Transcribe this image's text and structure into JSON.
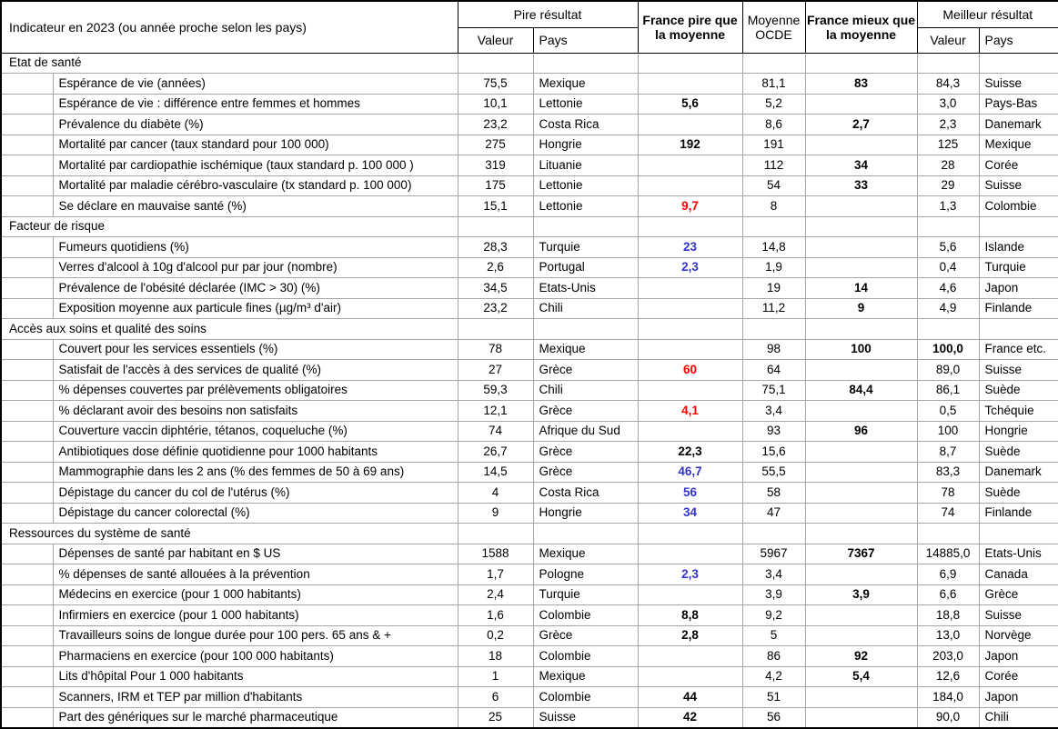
{
  "header": {
    "indicator_label": "Indicateur en 2023 (ou année proche selon les pays)",
    "worst_group": "Pire résultat",
    "worst_value_label": "Valeur",
    "worst_country_label": "Pays",
    "france_worse": "France pire que la moyenne",
    "oecd_average": "Moyenne OCDE",
    "france_better": "France mieux que la moyenne",
    "best_group": "Meilleur résultat",
    "best_value_label": "Valeur",
    "best_country_label": "Pays"
  },
  "colors": {
    "worse_than_average_red": "#ff0000",
    "worse_than_average_blue": "#3333cc",
    "gridline_gray": "#a6a6a6",
    "border_black": "#000000"
  },
  "rows": [
    {
      "type": "section",
      "label": "Etat de santé"
    },
    {
      "type": "data",
      "label": "Espérance de vie (années)",
      "worst_value": "75,5",
      "worst_country": "Mexique",
      "france_worse": "",
      "oecd": "81,1",
      "france_better": "83",
      "best_value": "84,3",
      "best_country": "Suisse"
    },
    {
      "type": "data",
      "label": "Espérance de vie : différence entre femmes et hommes",
      "worst_value": "10,1",
      "worst_country": "Lettonie",
      "france_worse": "5,6",
      "france_worse_color": "black",
      "oecd": "5,2",
      "france_better": "",
      "best_value": "3,0",
      "best_country": "Pays-Bas"
    },
    {
      "type": "data",
      "label": "Prévalence du diabète (%)",
      "worst_value": "23,2",
      "worst_country": "Costa Rica",
      "france_worse": "",
      "oecd": "8,6",
      "france_better": "2,7",
      "best_value": "2,3",
      "best_country": "Danemark"
    },
    {
      "type": "data",
      "label": "Mortalité par cancer (taux standard pour 100 000)",
      "worst_value": "275",
      "worst_country": "Hongrie",
      "france_worse": "192",
      "france_worse_color": "black",
      "oecd": "191",
      "france_better": "",
      "best_value": "125",
      "best_country": "Mexique"
    },
    {
      "type": "data",
      "label": "Mortalité par cardiopathie ischémique (taux standard p. 100 000 )",
      "worst_value": "319",
      "worst_country": "Lituanie",
      "france_worse": "",
      "oecd": "112",
      "france_better": "34",
      "best_value": "28",
      "best_country": "Corée"
    },
    {
      "type": "data",
      "label": "Mortalité par maladie cérébro-vasculaire (tx standard p. 100 000)",
      "worst_value": "175",
      "worst_country": "Lettonie",
      "france_worse": "",
      "oecd": "54",
      "france_better": "33",
      "best_value": "29",
      "best_country": "Suisse"
    },
    {
      "type": "data",
      "label": "Se déclare en mauvaise santé (%)",
      "worst_value": "15,1",
      "worst_country": "Lettonie",
      "france_worse": "9,7",
      "france_worse_color": "red",
      "oecd": "8",
      "france_better": "",
      "best_value": "1,3",
      "best_country": "Colombie"
    },
    {
      "type": "section",
      "label": "Facteur de risque"
    },
    {
      "type": "data",
      "label": "Fumeurs quotidiens (%)",
      "worst_value": "28,3",
      "worst_country": "Turquie",
      "france_worse": "23",
      "france_worse_color": "blue",
      "oecd": "14,8",
      "france_better": "",
      "best_value": "5,6",
      "best_country": "Islande"
    },
    {
      "type": "data",
      "label": "Verres d'alcool à 10g d'alcool pur par jour (nombre)",
      "worst_value": "2,6",
      "worst_country": "Portugal",
      "france_worse": "2,3",
      "france_worse_color": "blue",
      "oecd": "1,9",
      "france_better": "",
      "best_value": "0,4",
      "best_country": "Turquie"
    },
    {
      "type": "data",
      "label": "Prévalence de l'obésité déclarée (IMC > 30) (%)",
      "worst_value": "34,5",
      "worst_country": "Etats-Unis",
      "france_worse": "",
      "oecd": "19",
      "france_better": "14",
      "best_value": "4,6",
      "best_country": "Japon"
    },
    {
      "type": "data",
      "label": "Exposition moyenne aux particule fines (µg/m³ d'air)",
      "worst_value": "23,2",
      "worst_country": "Chili",
      "france_worse": "",
      "oecd": "11,2",
      "france_better": "9",
      "best_value": "4,9",
      "best_country": "Finlande"
    },
    {
      "type": "section",
      "label": "Accès aux soins et qualité des soins"
    },
    {
      "type": "data",
      "label": "Couvert pour les services essentiels (%)",
      "worst_value": "78",
      "worst_country": "Mexique",
      "france_worse": "",
      "oecd": "98",
      "france_better": "100",
      "best_value": "100,0",
      "best_value_bold": true,
      "best_country": "France etc."
    },
    {
      "type": "data",
      "label": "Satisfait de l'accès à des services de qualité (%)",
      "worst_value": "27",
      "worst_country": "Grèce",
      "france_worse": "60",
      "france_worse_color": "red",
      "oecd": "64",
      "france_better": "",
      "best_value": "89,0",
      "best_country": "Suisse"
    },
    {
      "type": "data",
      "label": "% dépenses couvertes par prélèvements obligatoires",
      "worst_value": "59,3",
      "worst_country": "Chili",
      "france_worse": "",
      "oecd": "75,1",
      "france_better": "84,4",
      "best_value": "86,1",
      "best_country": "Suède"
    },
    {
      "type": "data",
      "label": "% déclarant avoir des besoins non satisfaits",
      "worst_value": "12,1",
      "worst_country": "Grèce",
      "france_worse": "4,1",
      "france_worse_color": "red",
      "oecd": "3,4",
      "france_better": "",
      "best_value": "0,5",
      "best_country": "Tchéquie"
    },
    {
      "type": "data",
      "label": "Couverture vaccin diphtérie, tétanos, coqueluche (%)",
      "worst_value": "74",
      "worst_country": "Afrique du Sud",
      "france_worse": "",
      "oecd": "93",
      "france_better": "96",
      "best_value": "100",
      "best_country": "Hongrie"
    },
    {
      "type": "data",
      "label": "Antibiotiques dose définie quotidienne pour 1000 habitants",
      "worst_value": "26,7",
      "worst_country": "Grèce",
      "france_worse": "22,3",
      "france_worse_color": "black",
      "oecd": "15,6",
      "france_better": "",
      "best_value": "8,7",
      "best_country": "Suède"
    },
    {
      "type": "data",
      "label": "Mammographie dans les 2 ans (% des femmes de 50 à 69 ans)",
      "worst_value": "14,5",
      "worst_country": "Grèce",
      "france_worse": "46,7",
      "france_worse_color": "blue",
      "oecd": "55,5",
      "france_better": "",
      "best_value": "83,3",
      "best_country": "Danemark"
    },
    {
      "type": "data",
      "label": "Dépistage du cancer du col de l'utérus (%)",
      "worst_value": "4",
      "worst_country": "Costa Rica",
      "france_worse": "56",
      "france_worse_color": "blue",
      "oecd": "58",
      "france_better": "",
      "best_value": "78",
      "best_country": "Suède"
    },
    {
      "type": "data",
      "label": "Dépistage du cancer colorectal (%)",
      "worst_value": "9",
      "worst_country": "Hongrie",
      "france_worse": "34",
      "france_worse_color": "blue",
      "oecd": "47",
      "france_better": "",
      "best_value": "74",
      "best_country": "Finlande"
    },
    {
      "type": "section",
      "label": "Ressources du système de santé"
    },
    {
      "type": "data",
      "label": "Dépenses de santé par habitant en $ US",
      "worst_value": "1588",
      "worst_country": "Mexique",
      "france_worse": "",
      "oecd": "5967",
      "france_better": "7367",
      "best_value": "14885,0",
      "best_country": "Etats-Unis"
    },
    {
      "type": "data",
      "label": "% dépenses de santé allouées à la prévention",
      "worst_value": "1,7",
      "worst_country": "Pologne",
      "france_worse": "2,3",
      "france_worse_color": "blue",
      "oecd": "3,4",
      "france_better": "",
      "best_value": "6,9",
      "best_country": "Canada"
    },
    {
      "type": "data",
      "label": "Médecins en exercice (pour 1 000 habitants)",
      "worst_value": "2,4",
      "worst_country": "Turquie",
      "france_worse": "",
      "oecd": "3,9",
      "france_better": "3,9",
      "best_value": "6,6",
      "best_country": "Grèce"
    },
    {
      "type": "data",
      "label": "Infirmiers en exercice (pour 1 000 habitants)",
      "worst_value": "1,6",
      "worst_country": "Colombie",
      "france_worse": "8,8",
      "france_worse_color": "black",
      "oecd": "9,2",
      "france_better": "",
      "best_value": "18,8",
      "best_country": "Suisse"
    },
    {
      "type": "data",
      "label": "Travailleurs soins de longue durée pour 100 pers. 65 ans & +",
      "worst_value": "0,2",
      "worst_country": "Grèce",
      "france_worse": "2,8",
      "france_worse_color": "black",
      "oecd": "5",
      "france_better": "",
      "best_value": "13,0",
      "best_country": "Norvège"
    },
    {
      "type": "data",
      "label": "Pharmaciens en exercice (pour 100 000 habitants)",
      "worst_value": "18",
      "worst_country": "Colombie",
      "france_worse": "",
      "oecd": "86",
      "france_better": "92",
      "best_value": "203,0",
      "best_country": "Japon"
    },
    {
      "type": "data",
      "label": "Lits d'hôpital Pour 1 000 habitants",
      "worst_value": "1",
      "worst_country": "Mexique",
      "france_worse": "",
      "oecd": "4,2",
      "france_better": "5,4",
      "best_value": "12,6",
      "best_country": "Corée"
    },
    {
      "type": "data",
      "label": "Scanners, IRM et TEP par million d'habitants",
      "worst_value": "6",
      "worst_country": "Colombie",
      "france_worse": "44",
      "france_worse_color": "black",
      "oecd": "51",
      "france_better": "",
      "best_value": "184,0",
      "best_country": "Japon"
    },
    {
      "type": "data",
      "label": "Part des génériques sur le marché pharmaceutique",
      "worst_value": "25",
      "worst_country": "Suisse",
      "france_worse": "42",
      "france_worse_color": "black",
      "oecd": "56",
      "france_better": "",
      "best_value": "90,0",
      "best_country": "Chili"
    }
  ]
}
